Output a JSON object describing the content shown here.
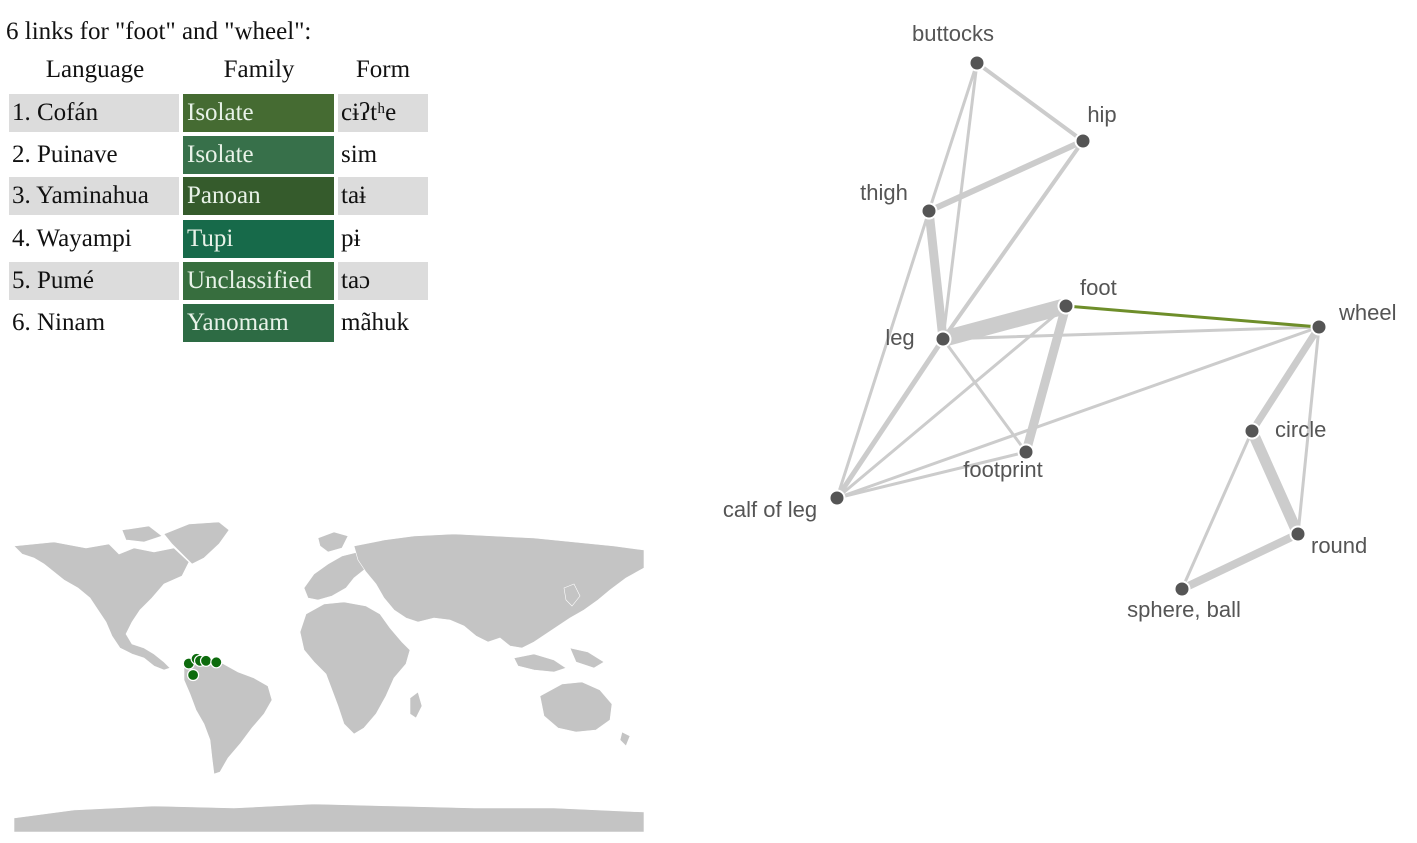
{
  "heading": "6 links for \"foot\" and \"wheel\":",
  "table": {
    "headers": {
      "language": "Language",
      "family": "Family",
      "form": "Form"
    },
    "rows": [
      {
        "language": "1. Cofán",
        "family": "Isolate",
        "form": "cɨʔtʰe",
        "family_color": "#456b32"
      },
      {
        "language": "2. Puinave",
        "family": "Isolate",
        "form": "sim",
        "family_color": "#37704a"
      },
      {
        "language": "3. Yaminahua",
        "family": "Panoan",
        "form": "taɨ",
        "family_color": "#355b2c"
      },
      {
        "language": "4. Wayampi",
        "family": "Tupi",
        "form": "pɨ",
        "family_color": "#176a4a"
      },
      {
        "language": "5. Pumé",
        "family": "Unclassified",
        "form": "taɔ",
        "family_color": "#376e3e"
      },
      {
        "language": "6. Ninam",
        "family": "Yanomam",
        "form": "mãhuk",
        "family_color": "#2d6b44"
      }
    ]
  },
  "colors": {
    "row_shade": "#dcdcdc",
    "land": "#c4c4c4",
    "point": "#0d6b0d",
    "edge": "#cccccc",
    "highlight_edge": "#6e8e2a",
    "node": "#555555"
  },
  "network": {
    "nodes": [
      {
        "id": "buttocks",
        "label": "buttocks"
      },
      {
        "id": "hip",
        "label": "hip"
      },
      {
        "id": "thigh",
        "label": "thigh"
      },
      {
        "id": "foot",
        "label": "foot"
      },
      {
        "id": "wheel",
        "label": "wheel"
      },
      {
        "id": "leg",
        "label": "leg"
      },
      {
        "id": "circle",
        "label": "circle"
      },
      {
        "id": "footprint",
        "label": "footprint"
      },
      {
        "id": "calf",
        "label": "calf of leg"
      },
      {
        "id": "round",
        "label": "round"
      },
      {
        "id": "sphere",
        "label": "sphere, ball"
      }
    ],
    "edges": [
      {
        "source": "buttocks",
        "target": "hip"
      },
      {
        "source": "buttocks",
        "target": "thigh"
      },
      {
        "source": "buttocks",
        "target": "leg"
      },
      {
        "source": "hip",
        "target": "thigh"
      },
      {
        "source": "hip",
        "target": "leg"
      },
      {
        "source": "thigh",
        "target": "leg"
      },
      {
        "source": "thigh",
        "target": "calf"
      },
      {
        "source": "leg",
        "target": "foot"
      },
      {
        "source": "leg",
        "target": "wheel"
      },
      {
        "source": "leg",
        "target": "footprint"
      },
      {
        "source": "leg",
        "target": "calf"
      },
      {
        "source": "foot",
        "target": "footprint"
      },
      {
        "source": "foot",
        "target": "calf"
      },
      {
        "source": "foot",
        "target": "wheel",
        "highlight": true
      },
      {
        "source": "footprint",
        "target": "calf"
      },
      {
        "source": "wheel",
        "target": "calf"
      },
      {
        "source": "wheel",
        "target": "circle"
      },
      {
        "source": "wheel",
        "target": "round"
      },
      {
        "source": "circle",
        "target": "round"
      },
      {
        "source": "circle",
        "target": "sphere"
      },
      {
        "source": "round",
        "target": "sphere"
      }
    ]
  },
  "map": {
    "points": [
      {
        "lon": -76.5,
        "lat": 0.3
      },
      {
        "lon": -72.0,
        "lat": 3.0
      },
      {
        "lon": -70.0,
        "lat": 1.8
      },
      {
        "lon": -66.5,
        "lat": 1.8
      },
      {
        "lon": -60.5,
        "lat": 1.0
      },
      {
        "lon": -74.0,
        "lat": -6.3
      }
    ]
  }
}
